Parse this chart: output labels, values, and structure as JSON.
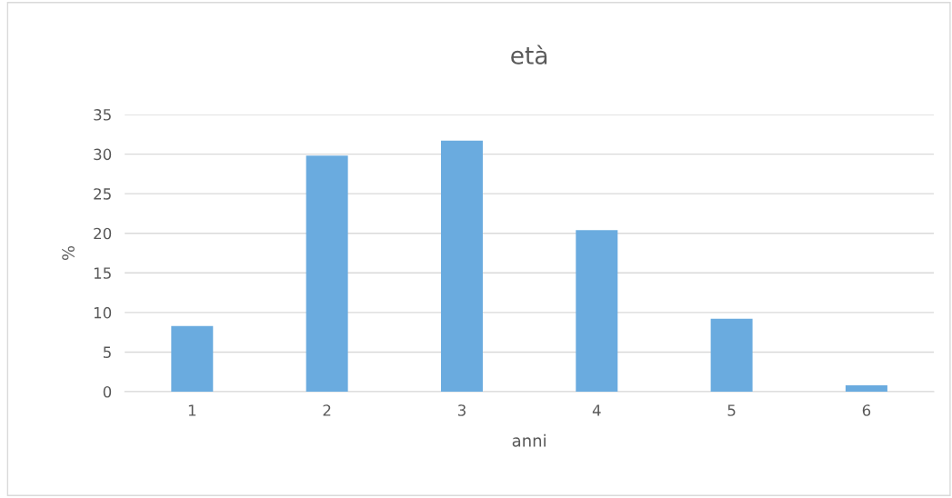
{
  "chart_data": {
    "type": "bar",
    "title": "età",
    "xlabel": "anni",
    "ylabel": "%",
    "categories": [
      "1",
      "2",
      "3",
      "4",
      "5",
      "6"
    ],
    "values": [
      8.3,
      29.8,
      31.7,
      20.4,
      9.2,
      0.8
    ],
    "color": "#6aabdf",
    "ylim": [
      0,
      35
    ],
    "yticks": [
      0,
      5,
      10,
      15,
      20,
      25,
      30,
      35
    ],
    "grid": "y"
  }
}
